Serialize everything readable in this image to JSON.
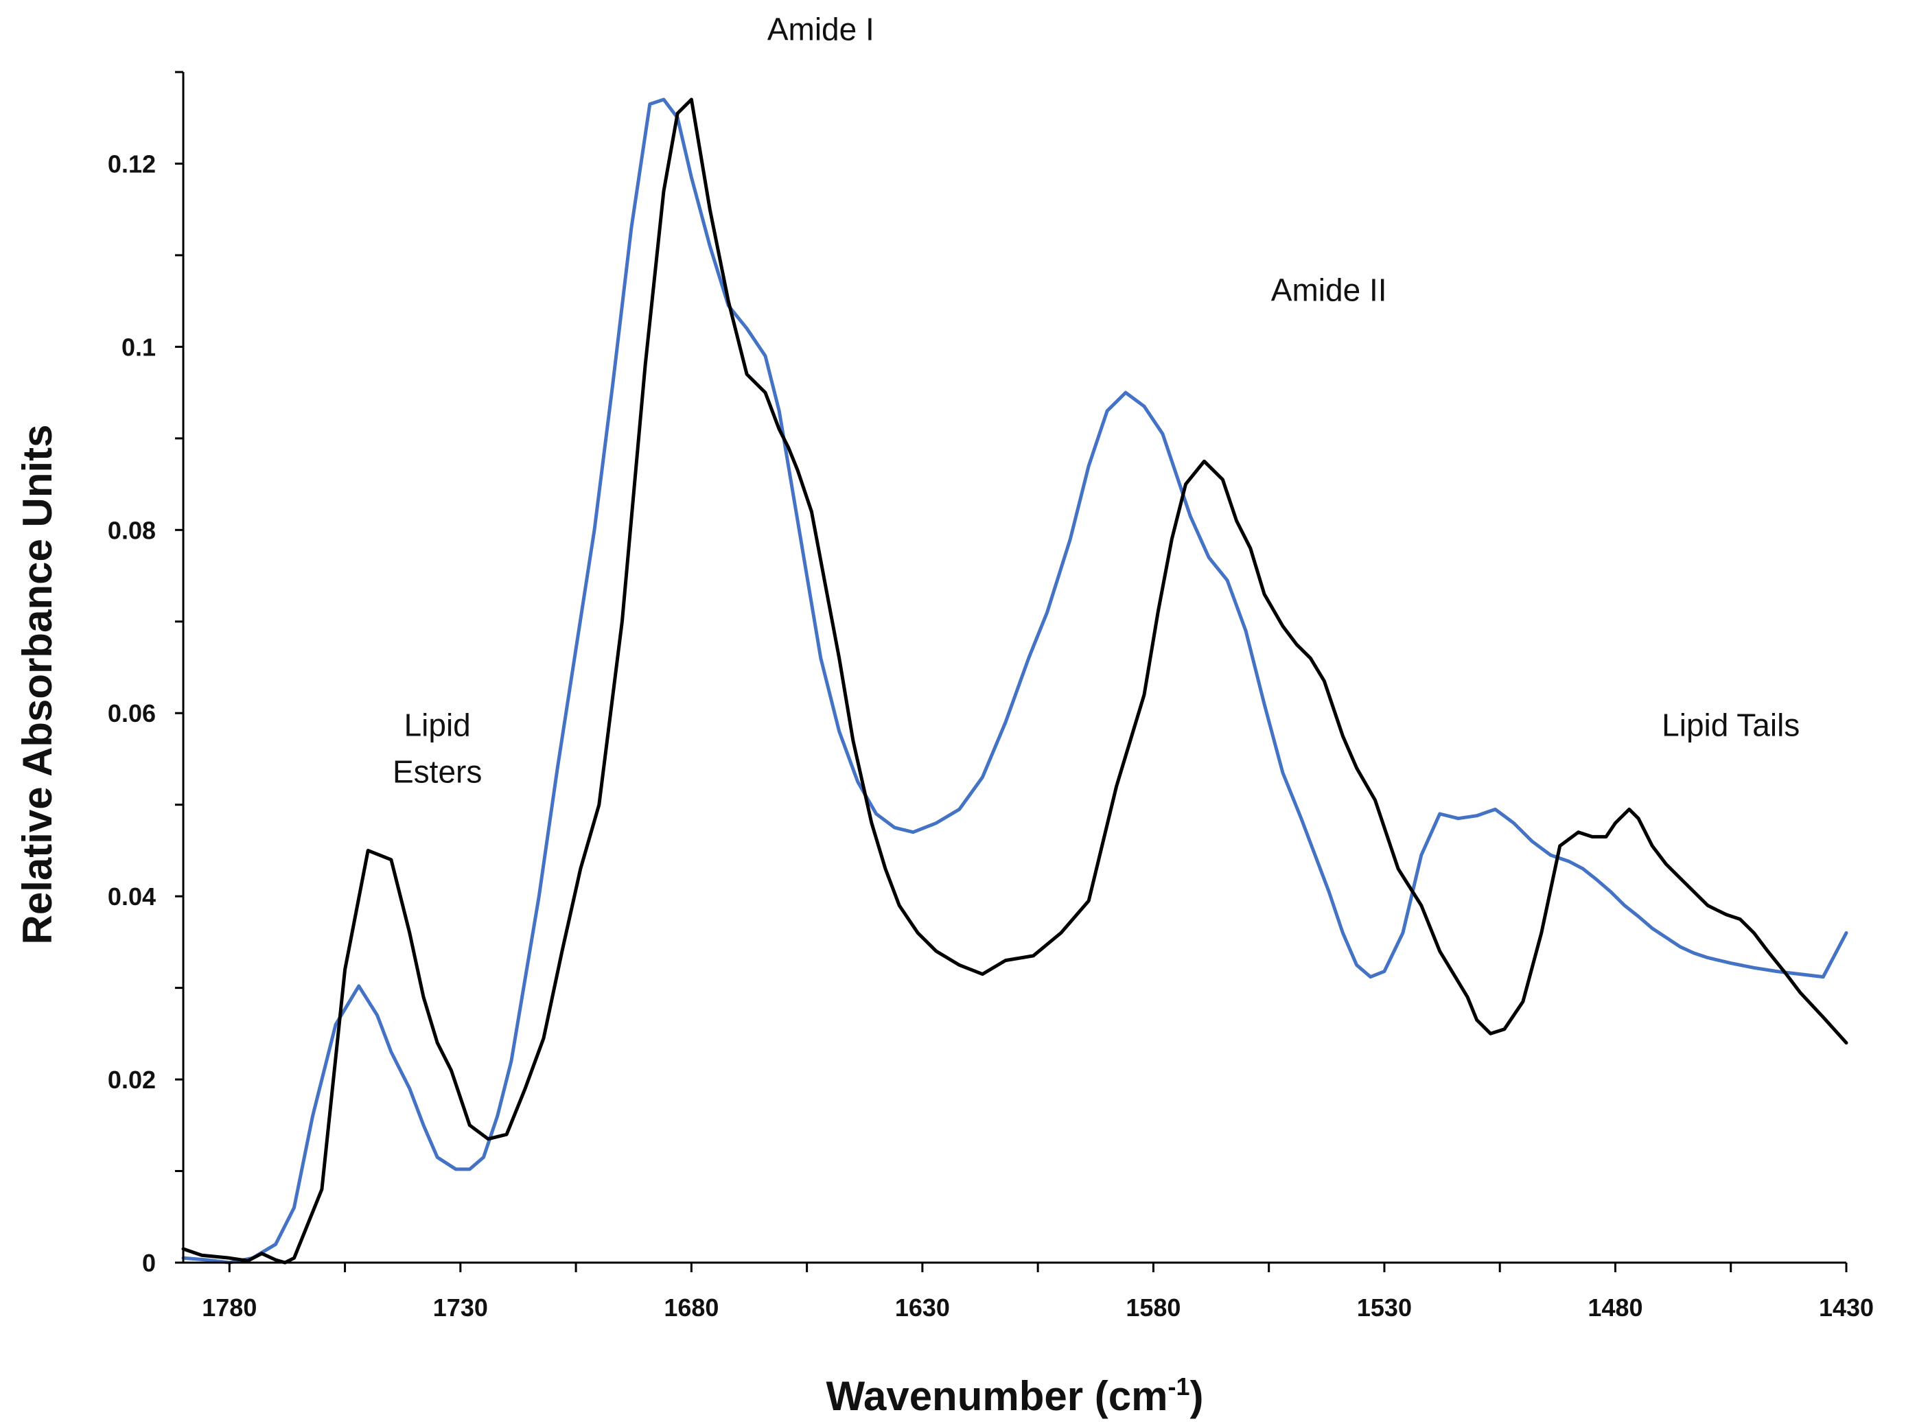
{
  "chart_data": {
    "type": "line",
    "title": "",
    "xlabel": "Wavenumber (cm",
    "xlabel_sup": "-1",
    "xlabel_suffix": ")",
    "ylabel": "Relative Absorbance Units",
    "xlim": [
      1790,
      1430
    ],
    "ylim": [
      0,
      0.13
    ],
    "x_reversed": true,
    "xticks": [
      1780,
      1730,
      1680,
      1630,
      1580,
      1530,
      1480,
      1430
    ],
    "xtick_labels": [
      "1780",
      "1730",
      "1680",
      "1630",
      "1580",
      "1530",
      "1480",
      "1430"
    ],
    "yticks": [
      0,
      0.02,
      0.04,
      0.06,
      0.08,
      0.1,
      0.12
    ],
    "ytick_labels": [
      "0",
      "0.02",
      "0.04",
      "0.06",
      "0.08",
      "0.1",
      "0.12"
    ],
    "yminor_step": 0.01,
    "xminor_step": 25,
    "grid": false,
    "annotations": [
      {
        "lines": [
          "Lipid",
          "Esters"
        ],
        "x": 1735,
        "y": 0.0575
      },
      {
        "lines": [
          "Amide I"
        ],
        "x": 1652,
        "y": 0.1335
      },
      {
        "lines": [
          "Amide II"
        ],
        "x": 1542,
        "y": 0.105
      },
      {
        "lines": [
          "Lipid Tails"
        ],
        "x": 1455,
        "y": 0.0575
      }
    ],
    "series": [
      {
        "name": "black",
        "color": "#000000",
        "x": [
          1790,
          1786,
          1780,
          1776,
          1773,
          1770,
          1768,
          1766,
          1760,
          1755,
          1750,
          1745,
          1741,
          1738,
          1735,
          1732,
          1728,
          1724,
          1720,
          1716,
          1712,
          1708,
          1704,
          1702,
          1700,
          1695,
          1690,
          1686,
          1683,
          1680,
          1676,
          1672,
          1668,
          1664,
          1661,
          1659,
          1657,
          1654,
          1651,
          1648,
          1645,
          1641,
          1638,
          1635,
          1631,
          1627,
          1622,
          1617,
          1612,
          1606,
          1600,
          1594,
          1588,
          1582,
          1579,
          1576,
          1573,
          1569,
          1565,
          1562,
          1559,
          1556,
          1552,
          1549,
          1546,
          1543,
          1541,
          1539,
          1536,
          1532,
          1527,
          1522,
          1518,
          1515,
          1512,
          1510,
          1507,
          1504,
          1500,
          1496,
          1492,
          1488,
          1485,
          1482,
          1480,
          1477,
          1475,
          1472,
          1469,
          1466,
          1463,
          1460,
          1458,
          1456,
          1453,
          1450,
          1447,
          1443,
          1440,
          1435,
          1430
        ],
        "y": [
          0.0015,
          0.0008,
          0.0005,
          0.0002,
          0.001,
          0.0003,
          0.0,
          0.0005,
          0.008,
          0.032,
          0.045,
          0.044,
          0.036,
          0.029,
          0.024,
          0.021,
          0.015,
          0.0135,
          0.014,
          0.019,
          0.0245,
          0.034,
          0.043,
          0.0465,
          0.05,
          0.07,
          0.098,
          0.117,
          0.1255,
          0.127,
          0.115,
          0.105,
          0.097,
          0.095,
          0.091,
          0.089,
          0.0865,
          0.082,
          0.074,
          0.066,
          0.057,
          0.048,
          0.043,
          0.039,
          0.036,
          0.034,
          0.0325,
          0.0315,
          0.033,
          0.0335,
          0.036,
          0.0395,
          0.052,
          0.062,
          0.071,
          0.079,
          0.085,
          0.0875,
          0.0855,
          0.081,
          0.078,
          0.073,
          0.0695,
          0.0675,
          0.066,
          0.0635,
          0.0605,
          0.0575,
          0.054,
          0.0505,
          0.043,
          0.039,
          0.034,
          0.0315,
          0.029,
          0.0265,
          0.025,
          0.0255,
          0.0285,
          0.036,
          0.0455,
          0.047,
          0.0465,
          0.0465,
          0.048,
          0.0495,
          0.0485,
          0.0455,
          0.0435,
          0.042,
          0.0405,
          0.039,
          0.0385,
          0.038,
          0.0375,
          0.036,
          0.034,
          0.0315,
          0.0295,
          0.0268,
          0.024
        ]
      },
      {
        "name": "blue",
        "color": "#4472c4",
        "x": [
          1790,
          1785,
          1780,
          1775,
          1770,
          1766,
          1762,
          1757,
          1752,
          1748,
          1745,
          1741,
          1738,
          1735,
          1731,
          1728,
          1725,
          1722,
          1719,
          1716,
          1713,
          1709,
          1705,
          1701,
          1697,
          1693,
          1689,
          1686,
          1683,
          1680,
          1676,
          1672,
          1668,
          1664,
          1661,
          1658,
          1655,
          1652,
          1648,
          1644,
          1640,
          1636,
          1632,
          1627,
          1622,
          1617,
          1612,
          1607,
          1603,
          1598,
          1594,
          1590,
          1586,
          1582,
          1578,
          1575,
          1572,
          1568,
          1564,
          1560,
          1556,
          1552,
          1548,
          1545,
          1542,
          1539,
          1536,
          1533,
          1530,
          1526,
          1522,
          1518,
          1514,
          1510,
          1506,
          1502,
          1498,
          1494,
          1490,
          1487,
          1484,
          1481,
          1478,
          1475,
          1472,
          1469,
          1466,
          1463,
          1460,
          1455,
          1450,
          1445,
          1440,
          1435,
          1430
        ],
        "y": [
          0.0005,
          0.0003,
          0.0,
          0.0005,
          0.002,
          0.006,
          0.016,
          0.026,
          0.0302,
          0.027,
          0.023,
          0.019,
          0.015,
          0.0115,
          0.0102,
          0.0102,
          0.0115,
          0.016,
          0.022,
          0.031,
          0.04,
          0.054,
          0.067,
          0.08,
          0.096,
          0.113,
          0.1265,
          0.127,
          0.125,
          0.1185,
          0.111,
          0.1045,
          0.102,
          0.099,
          0.093,
          0.084,
          0.075,
          0.066,
          0.058,
          0.0525,
          0.049,
          0.0475,
          0.047,
          0.048,
          0.0495,
          0.053,
          0.059,
          0.066,
          0.071,
          0.079,
          0.087,
          0.093,
          0.095,
          0.0935,
          0.0905,
          0.086,
          0.0815,
          0.077,
          0.0745,
          0.069,
          0.061,
          0.0535,
          0.0485,
          0.0445,
          0.0405,
          0.036,
          0.0325,
          0.0312,
          0.0318,
          0.036,
          0.0445,
          0.049,
          0.0485,
          0.0488,
          0.0495,
          0.048,
          0.046,
          0.0445,
          0.0438,
          0.043,
          0.0418,
          0.0405,
          0.039,
          0.0378,
          0.0365,
          0.0355,
          0.0345,
          0.0338,
          0.0333,
          0.0327,
          0.0322,
          0.0318,
          0.0315,
          0.0312,
          0.036
        ]
      }
    ]
  }
}
